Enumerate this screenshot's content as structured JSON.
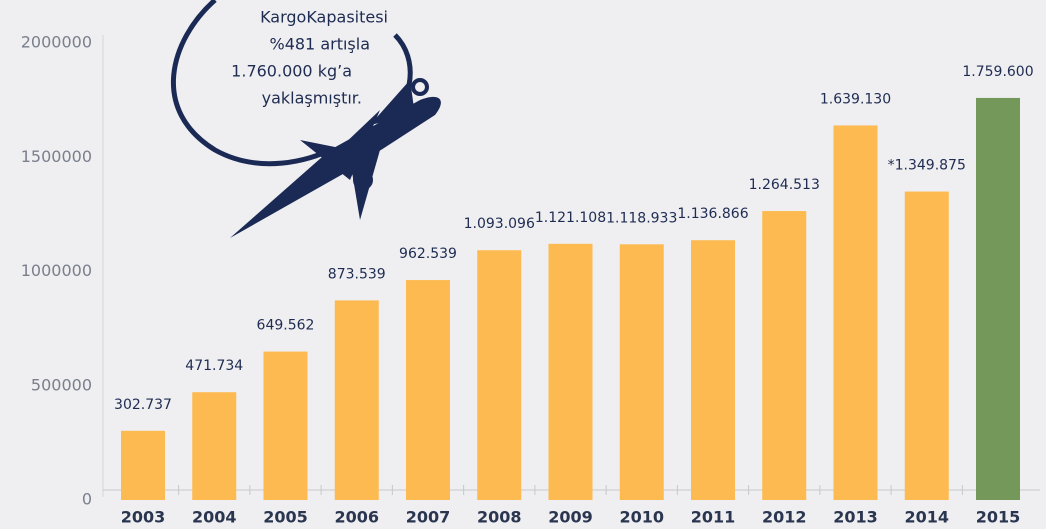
{
  "chart_data": {
    "type": "bar",
    "annotation": [
      "KargoKapasitesi",
      "%481 artışla",
      "1.760.000 kg’a",
      "yaklaşmıştır."
    ],
    "categories": [
      "2003",
      "2004",
      "2005",
      "2006",
      "2007",
      "2008",
      "2009",
      "2010",
      "2011",
      "2012",
      "2013",
      "2014",
      "2015"
    ],
    "values": [
      302737,
      471734,
      649562,
      873539,
      962539,
      1093096,
      1121108,
      1118933,
      1136866,
      1264513,
      1639130,
      1349875,
      1759600
    ],
    "value_labels": [
      "302.737",
      "471.734",
      "649.562",
      "873.539",
      "962.539",
      "1.093.096",
      "1.121.108",
      "1.118.933",
      "1.136.866",
      "1.264.513",
      "1.639.130",
      "*1.349.875",
      "1.759.600"
    ],
    "colors": [
      "#fdba50",
      "#fdba50",
      "#fdba50",
      "#fdba50",
      "#fdba50",
      "#fdba50",
      "#fdba50",
      "#fdba50",
      "#fdba50",
      "#fdba50",
      "#fdba50",
      "#fdba50",
      "#74985a"
    ],
    "ylim": [
      0,
      2000000
    ],
    "yticks": [
      0,
      500000,
      1000000,
      1500000,
      2000000
    ]
  }
}
